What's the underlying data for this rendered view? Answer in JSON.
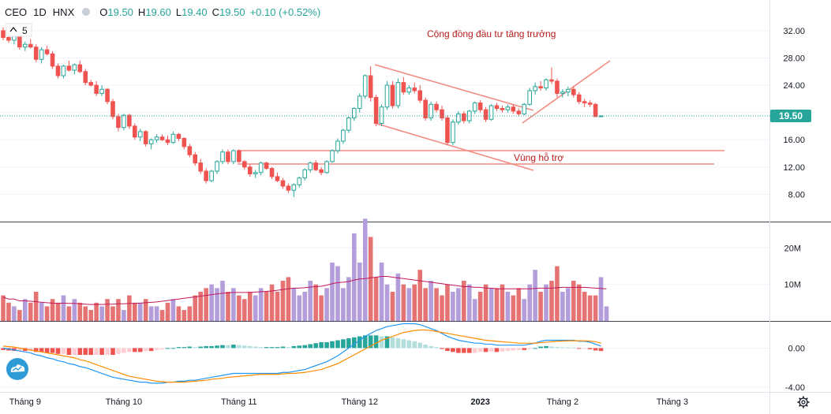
{
  "header": {
    "symbol": "CEO",
    "interval": "1D",
    "exchange": "HNX",
    "ohlc": {
      "o_label": "O",
      "o": "19.50",
      "h_label": "H",
      "h": "19.60",
      "l_label": "L",
      "l": "19.40",
      "c_label": "C",
      "c": "19.50",
      "change": "+0.10 (+0.52%)"
    },
    "indicator_count": "5"
  },
  "annotations": {
    "trend_text": "Cộng đồng đầu tư tăng trưởng",
    "support_text": "Vùng hỗ trợ"
  },
  "last_price_label": "19.50",
  "colors": {
    "up": "#26a69a",
    "up_fill": "#ffffff",
    "down": "#ef5350",
    "vol_up": "#b39ddb",
    "vol_down": "#e57373",
    "line_drawn": "#f28b82",
    "macd_line": "#2196f3",
    "signal_line": "#ff8c00",
    "hist_up": "#26a69a",
    "hist_down": "#ef5350",
    "vol_ma": "#c2185b",
    "annotation_text": "#b71c1c"
  },
  "chart_data": {
    "type": "candlestick",
    "title": "CEO · 1D · HNX",
    "price_axis": {
      "ticks": [
        "32.00",
        "28.00",
        "24.00",
        "20.00",
        "16.00",
        "12.00",
        "8.00"
      ],
      "range": [
        4.0,
        36.5
      ]
    },
    "volume_axis": {
      "ticks": [
        "20M",
        "10M"
      ],
      "range": [
        0,
        27
      ]
    },
    "macd_axis": {
      "ticks": [
        "0.00",
        "-4.00"
      ],
      "range": [
        -4.5,
        2.7
      ]
    },
    "time_axis": {
      "labels": [
        "Tháng 9",
        "Tháng 10",
        "Tháng 11",
        "Tháng 12",
        "2023",
        "Tháng 2",
        "Tháng 3"
      ]
    },
    "candles": [
      [
        32.0,
        32.5,
        30.6,
        31.0
      ],
      [
        31.0,
        31.8,
        30.2,
        30.6
      ],
      [
        30.6,
        31.6,
        30.0,
        31.2
      ],
      [
        31.2,
        31.4,
        29.2,
        29.6
      ],
      [
        29.6,
        30.4,
        29.0,
        30.0
      ],
      [
        30.0,
        30.8,
        29.4,
        29.6
      ],
      [
        29.6,
        30.0,
        27.4,
        27.8
      ],
      [
        27.8,
        29.6,
        27.2,
        29.2
      ],
      [
        29.2,
        29.8,
        28.4,
        28.6
      ],
      [
        28.6,
        29.0,
        26.4,
        26.8
      ],
      [
        26.8,
        27.2,
        25.0,
        25.4
      ],
      [
        25.4,
        27.0,
        25.0,
        26.8
      ],
      [
        26.8,
        27.6,
        26.0,
        26.2
      ],
      [
        26.2,
        27.2,
        25.6,
        27.0
      ],
      [
        27.0,
        27.6,
        25.8,
        26.0
      ],
      [
        26.0,
        26.4,
        24.0,
        24.4
      ],
      [
        24.4,
        24.8,
        23.8,
        24.0
      ],
      [
        24.0,
        24.6,
        22.4,
        22.8
      ],
      [
        22.8,
        24.0,
        22.4,
        23.4
      ],
      [
        23.4,
        23.6,
        21.2,
        21.6
      ],
      [
        21.6,
        22.0,
        19.0,
        19.4
      ],
      [
        19.4,
        19.8,
        17.2,
        17.8
      ],
      [
        17.8,
        19.8,
        17.4,
        19.6
      ],
      [
        19.6,
        19.8,
        17.6,
        18.0
      ],
      [
        18.0,
        18.4,
        16.0,
        16.4
      ],
      [
        16.4,
        17.6,
        15.8,
        17.2
      ],
      [
        17.2,
        17.4,
        15.0,
        15.4
      ],
      [
        15.4,
        16.2,
        14.6,
        16.0
      ],
      [
        16.0,
        16.8,
        15.6,
        16.4
      ],
      [
        16.4,
        16.8,
        15.8,
        16.0
      ],
      [
        16.0,
        16.6,
        15.2,
        15.6
      ],
      [
        15.6,
        17.2,
        15.4,
        16.8
      ],
      [
        16.8,
        17.0,
        15.8,
        16.2
      ],
      [
        16.2,
        16.4,
        14.6,
        15.0
      ],
      [
        15.0,
        15.4,
        13.4,
        13.8
      ],
      [
        13.8,
        14.2,
        12.2,
        12.6
      ],
      [
        12.6,
        13.2,
        11.0,
        11.4
      ],
      [
        11.4,
        11.8,
        9.6,
        10.0
      ],
      [
        10.0,
        11.6,
        9.8,
        11.4
      ],
      [
        11.4,
        13.0,
        11.0,
        12.8
      ],
      [
        12.8,
        14.6,
        12.4,
        14.2
      ],
      [
        14.2,
        14.6,
        12.4,
        12.8
      ],
      [
        12.8,
        14.6,
        12.4,
        14.4
      ],
      [
        14.4,
        14.6,
        12.6,
        12.8
      ],
      [
        12.8,
        13.0,
        11.6,
        12.0
      ],
      [
        12.0,
        12.4,
        10.6,
        11.0
      ],
      [
        11.0,
        11.6,
        10.4,
        11.2
      ],
      [
        11.2,
        12.8,
        10.8,
        12.6
      ],
      [
        12.6,
        12.8,
        11.6,
        11.8
      ],
      [
        11.8,
        12.0,
        10.2,
        10.6
      ],
      [
        10.6,
        11.2,
        9.8,
        10.0
      ],
      [
        10.0,
        10.4,
        8.8,
        9.2
      ],
      [
        9.2,
        9.6,
        8.2,
        8.6
      ],
      [
        8.6,
        9.6,
        7.6,
        9.4
      ],
      [
        9.4,
        10.6,
        9.0,
        10.4
      ],
      [
        10.4,
        11.8,
        10.0,
        11.6
      ],
      [
        11.6,
        12.8,
        11.2,
        12.6
      ],
      [
        12.6,
        13.0,
        11.4,
        11.6
      ],
      [
        11.6,
        12.0,
        10.8,
        11.2
      ],
      [
        11.2,
        13.0,
        11.0,
        12.8
      ],
      [
        12.8,
        14.6,
        12.6,
        14.4
      ],
      [
        14.4,
        16.2,
        14.0,
        15.8
      ],
      [
        15.8,
        17.6,
        15.4,
        17.4
      ],
      [
        17.4,
        19.4,
        17.0,
        19.2
      ],
      [
        19.2,
        20.8,
        18.8,
        20.6
      ],
      [
        20.6,
        22.8,
        20.0,
        22.4
      ],
      [
        22.4,
        25.6,
        22.0,
        25.4
      ],
      [
        25.4,
        26.8,
        21.6,
        22.2
      ],
      [
        22.2,
        22.6,
        18.0,
        18.4
      ],
      [
        18.4,
        21.2,
        18.0,
        20.8
      ],
      [
        20.8,
        24.6,
        20.4,
        24.0
      ],
      [
        24.0,
        24.6,
        20.6,
        21.0
      ],
      [
        21.0,
        25.0,
        20.6,
        24.4
      ],
      [
        24.4,
        25.2,
        22.6,
        23.0
      ],
      [
        23.0,
        24.0,
        22.6,
        23.6
      ],
      [
        23.6,
        24.4,
        22.8,
        23.2
      ],
      [
        23.2,
        24.0,
        21.4,
        21.8
      ],
      [
        21.8,
        22.2,
        18.8,
        19.2
      ],
      [
        19.2,
        21.6,
        18.8,
        21.2
      ],
      [
        21.2,
        21.6,
        20.0,
        20.4
      ],
      [
        20.4,
        21.0,
        18.8,
        19.2
      ],
      [
        19.2,
        19.6,
        15.2,
        15.6
      ],
      [
        15.6,
        19.0,
        15.2,
        18.6
      ],
      [
        18.6,
        20.2,
        18.2,
        19.8
      ],
      [
        19.8,
        20.2,
        18.4,
        18.8
      ],
      [
        18.8,
        20.4,
        18.4,
        20.2
      ],
      [
        20.2,
        21.6,
        19.8,
        21.4
      ],
      [
        21.4,
        21.8,
        20.0,
        20.4
      ],
      [
        20.4,
        20.8,
        18.6,
        19.0
      ],
      [
        19.0,
        21.2,
        18.8,
        21.0
      ],
      [
        21.0,
        21.4,
        20.2,
        20.6
      ],
      [
        20.6,
        21.0,
        20.0,
        20.4
      ],
      [
        20.4,
        21.2,
        20.0,
        20.8
      ],
      [
        20.8,
        21.2,
        19.8,
        20.2
      ],
      [
        20.2,
        20.6,
        19.4,
        19.8
      ],
      [
        19.8,
        21.4,
        19.6,
        21.2
      ],
      [
        21.2,
        23.6,
        21.0,
        23.2
      ],
      [
        23.2,
        24.4,
        22.6,
        23.8
      ],
      [
        23.8,
        24.6,
        23.2,
        23.6
      ],
      [
        23.6,
        25.0,
        23.2,
        24.8
      ],
      [
        24.8,
        26.6,
        24.2,
        24.6
      ],
      [
        24.6,
        25.0,
        22.2,
        22.8
      ],
      [
        22.8,
        23.4,
        22.2,
        23.0
      ],
      [
        23.0,
        23.8,
        22.4,
        23.4
      ],
      [
        23.4,
        23.8,
        22.2,
        22.6
      ],
      [
        22.6,
        23.0,
        21.2,
        21.6
      ],
      [
        21.6,
        22.0,
        20.8,
        21.4
      ],
      [
        21.4,
        21.8,
        20.8,
        21.2
      ],
      [
        21.2,
        21.4,
        19.6,
        19.4
      ],
      [
        19.5,
        19.6,
        19.4,
        19.5
      ]
    ],
    "volume": [
      7,
      5,
      4,
      3,
      6,
      5,
      8,
      5,
      4,
      6,
      5,
      7,
      4,
      6,
      5,
      4,
      3,
      5,
      4,
      6,
      4,
      6,
      3,
      7,
      5,
      5,
      6,
      4,
      4,
      3,
      5,
      6,
      4,
      3,
      4,
      7,
      8,
      9,
      10,
      9,
      11,
      8,
      9,
      7,
      6,
      8,
      7,
      9,
      8,
      10,
      8,
      11,
      12,
      9,
      7,
      8,
      11,
      10,
      7,
      9,
      16,
      15,
      9,
      12,
      24,
      16,
      28,
      23,
      12,
      16,
      10,
      8,
      13,
      10,
      9,
      10,
      14,
      9,
      11,
      9,
      7,
      10,
      8,
      9,
      11,
      10,
      6,
      8,
      10,
      9,
      9,
      10,
      8,
      7,
      9,
      6,
      10,
      14,
      8,
      10,
      11,
      15,
      8,
      9,
      11,
      10,
      8,
      7,
      7,
      12,
      4
    ],
    "volume_ma": [
      6.5,
      6.0,
      6.0,
      5.5,
      5.5,
      5.4,
      5.3,
      5.1,
      5.0,
      4.9,
      4.8,
      4.9,
      4.8,
      4.8,
      4.7,
      4.6,
      4.5,
      4.5,
      4.5,
      4.6,
      4.6,
      4.7,
      4.7,
      4.8,
      4.8,
      4.9,
      5.0,
      5.1,
      5.2,
      5.4,
      5.6,
      5.8,
      6.0,
      6.2,
      6.4,
      6.6,
      6.8,
      7.0,
      7.2,
      7.4,
      7.6,
      7.7,
      7.8,
      7.8,
      7.8,
      7.8,
      7.9,
      8.0,
      8.1,
      8.2,
      8.4,
      8.6,
      8.8,
      9.0,
      9.0,
      9.1,
      9.3,
      9.4,
      9.5,
      9.8,
      10.2,
      10.5,
      10.6,
      10.8,
      11.2,
      11.5,
      11.6,
      11.8,
      12.0,
      12.2,
      12.2,
      12.0,
      11.8,
      11.6,
      11.4,
      11.2,
      11.0,
      10.8,
      10.6,
      10.4,
      10.2,
      10.0,
      9.8,
      9.6,
      9.4,
      9.4,
      9.2,
      9.2,
      9.0,
      9.0,
      8.8,
      8.8,
      8.8,
      8.8,
      8.8,
      8.8,
      8.8,
      8.9,
      9.0,
      9.0,
      9.0,
      9.1,
      9.2,
      9.2,
      9.2,
      9.2,
      9.2,
      9.1,
      9.0,
      8.9,
      8.8
    ],
    "macd": {
      "macd_line": [
        0.0,
        -0.1,
        -0.2,
        -0.3,
        -0.4,
        -0.5,
        -0.7,
        -0.8,
        -1.0,
        -1.1,
        -1.3,
        -1.4,
        -1.6,
        -1.7,
        -1.9,
        -2.0,
        -2.2,
        -2.4,
        -2.6,
        -2.8,
        -3.0,
        -3.1,
        -3.2,
        -3.3,
        -3.4,
        -3.5,
        -3.5,
        -3.6,
        -3.6,
        -3.6,
        -3.5,
        -3.5,
        -3.4,
        -3.4,
        -3.3,
        -3.3,
        -3.2,
        -3.1,
        -3.0,
        -2.9,
        -2.8,
        -2.7,
        -2.6,
        -2.6,
        -2.6,
        -2.6,
        -2.6,
        -2.6,
        -2.6,
        -2.6,
        -2.6,
        -2.5,
        -2.5,
        -2.4,
        -2.3,
        -2.2,
        -2.0,
        -1.8,
        -1.6,
        -1.4,
        -1.1,
        -0.8,
        -0.4,
        0.0,
        0.4,
        0.8,
        1.2,
        1.5,
        1.8,
        2.0,
        2.2,
        2.3,
        2.4,
        2.5,
        2.5,
        2.5,
        2.4,
        2.2,
        2.0,
        1.8,
        1.5,
        1.2,
        1.0,
        0.8,
        0.7,
        0.6,
        0.5,
        0.5,
        0.4,
        0.4,
        0.3,
        0.3,
        0.3,
        0.3,
        0.3,
        0.3,
        0.4,
        0.5,
        0.7,
        0.8,
        0.8,
        0.8,
        0.8,
        0.8,
        0.8,
        0.7,
        0.7,
        0.6,
        0.4,
        0.2
      ],
      "signal_line": [
        0.2,
        0.15,
        0.1,
        0.0,
        -0.1,
        -0.2,
        -0.3,
        -0.4,
        -0.5,
        -0.6,
        -0.7,
        -0.8,
        -0.9,
        -1.0,
        -1.2,
        -1.3,
        -1.5,
        -1.7,
        -1.9,
        -2.1,
        -2.3,
        -2.5,
        -2.7,
        -2.9,
        -3.0,
        -3.1,
        -3.2,
        -3.3,
        -3.4,
        -3.45,
        -3.5,
        -3.5,
        -3.5,
        -3.5,
        -3.45,
        -3.4,
        -3.35,
        -3.3,
        -3.2,
        -3.15,
        -3.1,
        -3.0,
        -2.95,
        -2.9,
        -2.85,
        -2.8,
        -2.75,
        -2.7,
        -2.7,
        -2.7,
        -2.7,
        -2.65,
        -2.6,
        -2.6,
        -2.55,
        -2.5,
        -2.4,
        -2.3,
        -2.2,
        -2.0,
        -1.8,
        -1.6,
        -1.3,
        -1.0,
        -0.7,
        -0.4,
        -0.1,
        0.2,
        0.5,
        0.8,
        1.0,
        1.2,
        1.4,
        1.6,
        1.7,
        1.8,
        1.85,
        1.85,
        1.8,
        1.7,
        1.6,
        1.5,
        1.4,
        1.3,
        1.2,
        1.1,
        1.0,
        0.9,
        0.8,
        0.75,
        0.7,
        0.65,
        0.6,
        0.55,
        0.5,
        0.5,
        0.5,
        0.5,
        0.55,
        0.6,
        0.65,
        0.7,
        0.72,
        0.74,
        0.75,
        0.75,
        0.74,
        0.72,
        0.65,
        0.5
      ]
    }
  }
}
